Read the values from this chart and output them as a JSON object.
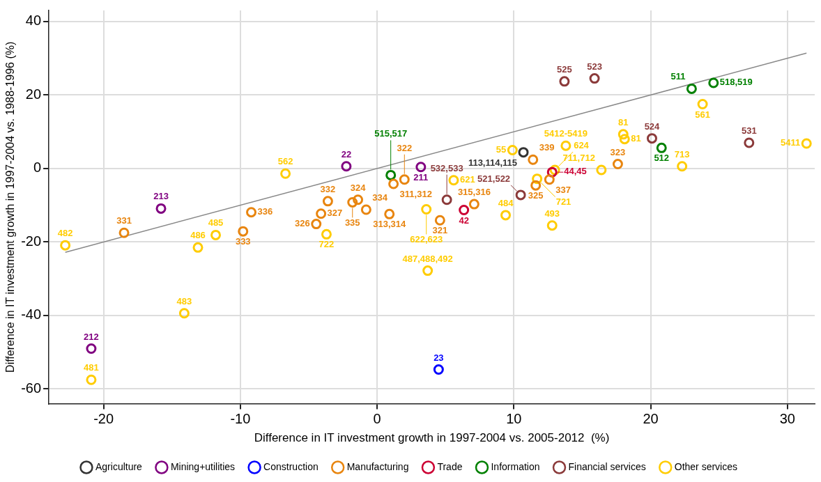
{
  "chart_data": {
    "type": "scatter",
    "xlabel": "Difference in IT investment growth in 1997-2004 vs. 2005-2012  (%)",
    "ylabel": "Difference in IT investment growth in 1997-2004 vs. 1988-1996 (%)",
    "xlim": [
      -24,
      32
    ],
    "xticks": [
      -20,
      -10,
      0,
      10,
      20,
      30
    ],
    "ylim": [
      -64,
      43
    ],
    "yticks": [
      -60,
      -40,
      -20,
      0,
      20,
      40
    ],
    "grid": true,
    "legend": "bottom",
    "marker": "circle",
    "series": [
      {
        "name": "Agriculture",
        "color": "#333333",
        "x": [
          10.7
        ],
        "values": [
          4.4
        ]
      },
      {
        "name": "Mining+utilities",
        "color": "#800080",
        "x": [
          -15.8,
          -20.9,
          -2.25,
          3.2
        ],
        "values": [
          -10.9,
          -49,
          0.6,
          0.4
        ]
      },
      {
        "name": "Construction",
        "color": "#0000ff",
        "x": [
          4.5
        ],
        "values": [
          -54.7
        ]
      },
      {
        "name": "Manufacturing",
        "color": "#e8850f",
        "x": [
          -18.5,
          -9.2,
          -9.8,
          -3.6,
          -4.1,
          -4.45,
          -1.8,
          -1.4,
          -0.8,
          0.9,
          1.2,
          2.0,
          4.6,
          7.1,
          11.4,
          17.6,
          11.6,
          12.6
        ],
        "values": [
          -17.5,
          -11.9,
          -17.1,
          -8.9,
          -12.3,
          -15.1,
          -9.2,
          -8.5,
          -11.2,
          -12.4,
          -4.2,
          -3.0,
          -14.1,
          -9.7,
          2.4,
          1.2,
          -4.6,
          -3.0
        ]
      },
      {
        "name": "Trade",
        "color": "#cc0033",
        "x": [
          6.35,
          12.8
        ],
        "values": [
          -11.3,
          -1.0
        ]
      },
      {
        "name": "Information",
        "color": "#008000",
        "x": [
          1.0,
          23.0,
          24.6,
          20.8
        ],
        "values": [
          -1.8,
          21.7,
          23.3,
          5.6
        ]
      },
      {
        "name": "Financial services",
        "color": "#8b3a3a",
        "x": [
          13.7,
          15.9,
          20.1,
          27.2,
          5.1,
          10.5
        ],
        "values": [
          23.7,
          24.5,
          8.2,
          7.0,
          -8.5,
          -7.2
        ]
      },
      {
        "name": "Other services",
        "color": "#ffcc00",
        "x": [
          -22.8,
          -20.9,
          -14.1,
          -13.1,
          -11.8,
          -6.7,
          -3.7,
          3.7,
          3.6,
          5.6,
          9.4,
          12.8,
          13.8,
          16.4,
          18.0,
          18.1,
          11.7,
          13.0,
          22.3,
          23.8,
          31.4,
          9.9
        ],
        "values": [
          -20.9,
          -57.5,
          -39.4,
          -21.5,
          -18.1,
          -1.4,
          -17.9,
          -27.8,
          -11.1,
          -3.2,
          -12.7,
          -15.5,
          6.2,
          -0.4,
          9.3,
          8.0,
          -2.8,
          -0.4,
          0.6,
          17.5,
          6.8,
          5.0
        ]
      },
      {
        "type": "line",
        "color": "#888888",
        "x": [
          -22.8,
          31.4
        ],
        "values": [
          -22.8,
          31.4
        ],
        "marker": "none"
      }
    ],
    "annotations": [
      {
        "text": "113,114,115",
        "x": 10.7,
        "y": 4.4
      },
      {
        "text": "213",
        "x": -15.8,
        "y": -10.9
      },
      {
        "text": "212",
        "x": -20.9,
        "y": -49
      },
      {
        "text": "22",
        "x": -2.25,
        "y": 0.6
      },
      {
        "text": "211",
        "x": 3.2,
        "y": 0.4
      },
      {
        "text": "23",
        "x": 4.5,
        "y": -54.7
      },
      {
        "text": "331",
        "x": -18.5,
        "y": -17.5
      },
      {
        "text": "336",
        "x": -9.2,
        "y": -11.9
      },
      {
        "text": "333",
        "x": -9.8,
        "y": -17.1
      },
      {
        "text": "332",
        "x": -3.6,
        "y": -8.9
      },
      {
        "text": "327",
        "x": -4.1,
        "y": -12.3
      },
      {
        "text": "326",
        "x": -4.45,
        "y": -15.1
      },
      {
        "text": "335",
        "x": -1.8,
        "y": -9.2
      },
      {
        "text": "324",
        "x": -1.4,
        "y": -8.5
      },
      {
        "text": "334",
        "x": -0.8,
        "y": -11.2
      },
      {
        "text": "313,314",
        "x": 0.9,
        "y": -12.4
      },
      {
        "text": "311,312",
        "x": 1.2,
        "y": -4.2
      },
      {
        "text": "322",
        "x": 2.0,
        "y": -3.0
      },
      {
        "text": "321",
        "x": 4.6,
        "y": -14.1
      },
      {
        "text": "315,316",
        "x": 7.1,
        "y": -9.7
      },
      {
        "text": "339",
        "x": 11.4,
        "y": 2.4
      },
      {
        "text": "323",
        "x": 17.6,
        "y": 1.2
      },
      {
        "text": "325",
        "x": 11.6,
        "y": -4.6
      },
      {
        "text": "337",
        "x": 12.6,
        "y": -3.0
      },
      {
        "text": "42",
        "x": 6.35,
        "y": -11.3
      },
      {
        "text": "44,45",
        "x": 12.8,
        "y": -1.0
      },
      {
        "text": "515,517",
        "x": 1.0,
        "y": -1.8
      },
      {
        "text": "511",
        "x": 23.0,
        "y": 21.7
      },
      {
        "text": "518,519",
        "x": 24.6,
        "y": 23.3
      },
      {
        "text": "512",
        "x": 20.8,
        "y": 5.6
      },
      {
        "text": "525",
        "x": 13.7,
        "y": 23.7
      },
      {
        "text": "523",
        "x": 15.9,
        "y": 24.5
      },
      {
        "text": "524",
        "x": 20.1,
        "y": 8.2
      },
      {
        "text": "531",
        "x": 27.2,
        "y": 7.0
      },
      {
        "text": "532,533",
        "x": 5.1,
        "y": -8.5
      },
      {
        "text": "521,522",
        "x": 10.5,
        "y": -7.2
      },
      {
        "text": "482",
        "x": -22.8,
        "y": -20.9
      },
      {
        "text": "481",
        "x": -20.9,
        "y": -57.5
      },
      {
        "text": "483",
        "x": -14.1,
        "y": -39.4
      },
      {
        "text": "486",
        "x": -13.1,
        "y": -21.5
      },
      {
        "text": "485",
        "x": -11.8,
        "y": -18.1
      },
      {
        "text": "562",
        "x": -6.7,
        "y": -1.4
      },
      {
        "text": "722",
        "x": -3.7,
        "y": -17.9
      },
      {
        "text": "487,488,492",
        "x": 3.7,
        "y": -27.8
      },
      {
        "text": "622,623",
        "x": 3.6,
        "y": -11.1
      },
      {
        "text": "621",
        "x": 5.6,
        "y": -3.2
      },
      {
        "text": "484",
        "x": 9.4,
        "y": -12.7
      },
      {
        "text": "493",
        "x": 12.8,
        "y": -15.5
      },
      {
        "text": "5412-5419",
        "x": 13.8,
        "y": 6.2
      },
      {
        "text": "711,712",
        "x": 16.4,
        "y": -0.4
      },
      {
        "text": "81",
        "x": 18.0,
        "y": 9.3
      },
      {
        "text": "81",
        "x": 18.1,
        "y": 8.0
      },
      {
        "text": "721",
        "x": 11.7,
        "y": -2.8
      },
      {
        "text": "624",
        "x": 13.0,
        "y": -0.4
      },
      {
        "text": "713",
        "x": 22.3,
        "y": 0.6
      },
      {
        "text": "561",
        "x": 23.8,
        "y": 17.5
      },
      {
        "text": "5411",
        "x": 31.4,
        "y": 6.8
      },
      {
        "text": "55",
        "x": 9.9,
        "y": 5.0
      }
    ]
  }
}
